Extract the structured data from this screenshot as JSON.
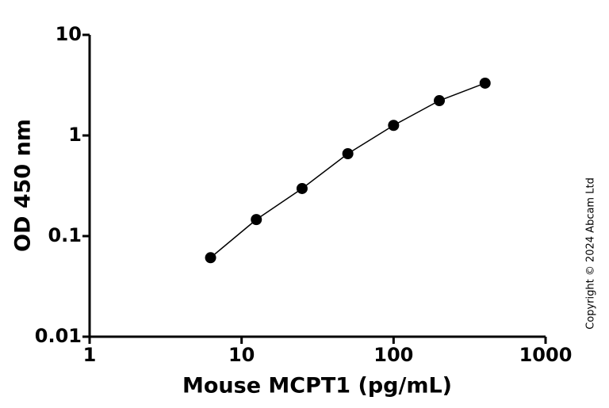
{
  "chart_data": {
    "type": "line",
    "xlabel": "Mouse MCPT1 (pg/mL)",
    "ylabel": "OD 450 nm",
    "annotation": "Copyright © 2024 Abcam Ltd",
    "x": [
      6.25,
      12.5,
      25,
      50,
      100,
      200,
      400
    ],
    "series": [
      {
        "color": "#000000",
        "values": [
          0.061,
          0.146,
          0.297,
          0.659,
          1.26,
          2.22,
          3.31
        ]
      }
    ],
    "xlim": [
      1,
      1000
    ],
    "xticks": [
      1,
      10,
      100,
      1000
    ],
    "ylim": [
      0.01,
      10
    ],
    "yticks": [
      0.01,
      0.1,
      1,
      10
    ],
    "xscale": "log",
    "yscale": "log",
    "grid": false
  }
}
